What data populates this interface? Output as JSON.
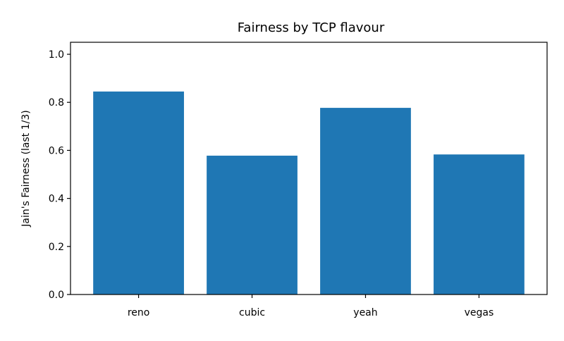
{
  "chart_data": {
    "type": "bar",
    "title": "Fairness by TCP flavour",
    "xlabel": "",
    "ylabel": "Jain's Fairness (last 1/3)",
    "categories": [
      "reno",
      "cubic",
      "yeah",
      "vegas"
    ],
    "values": [
      0.845,
      0.578,
      0.777,
      0.583
    ],
    "ylim": [
      0,
      1.05
    ],
    "yticks": [
      "0.0",
      "0.2",
      "0.4",
      "0.6",
      "0.8",
      "1.0"
    ],
    "grid": false,
    "legend": "none",
    "bar_color": "#1f77b4"
  }
}
